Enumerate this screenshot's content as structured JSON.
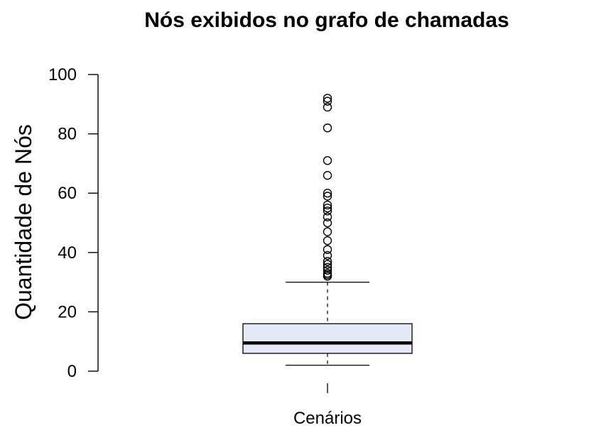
{
  "chart_data": {
    "type": "boxplot",
    "title": "Nós exibidos no grafo de chamadas",
    "xlabel": "Cenários",
    "ylabel": "Quantidade de Nós",
    "ylim": [
      0,
      100
    ],
    "yticks": [
      0,
      20,
      40,
      60,
      80,
      100
    ],
    "ytick_labels": [
      "0",
      "20",
      "40",
      "60",
      "80",
      "100"
    ],
    "grid": false,
    "legend": "none",
    "box": {
      "lower_whisker": 2,
      "q1": 6,
      "median": 9.5,
      "q3": 16,
      "upper_whisker": 30,
      "outliers": [
        92,
        91,
        89,
        82,
        71,
        66,
        60,
        59,
        56,
        55,
        54,
        52,
        50,
        47,
        44,
        41,
        39,
        37,
        36,
        35,
        34,
        33,
        32.5,
        32
      ]
    },
    "colors": {
      "box_fill": "#e3e9f7",
      "stroke": "#000000"
    }
  }
}
